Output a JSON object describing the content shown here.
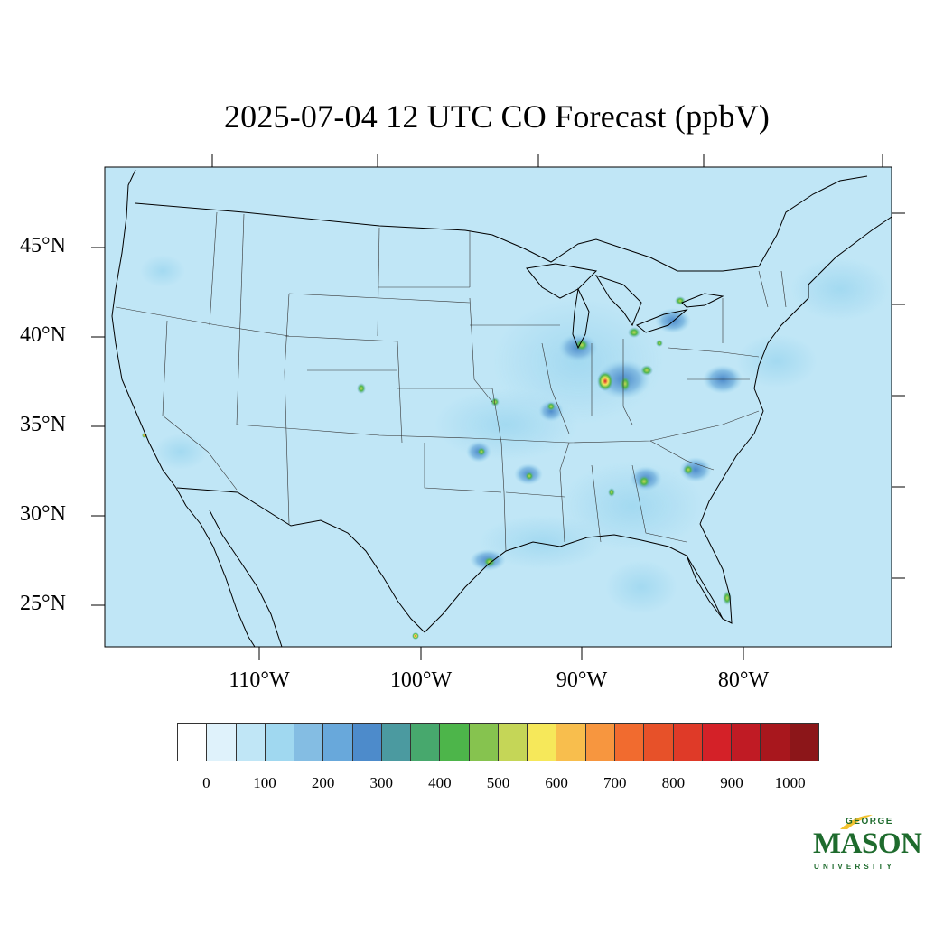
{
  "title": "2025-07-04 12 UTC CO Forecast (ppbV)",
  "map": {
    "lat_labels": [
      "45°N",
      "40°N",
      "35°N",
      "30°N",
      "25°N"
    ],
    "lon_labels": [
      "110°W",
      "100°W",
      "90°W",
      "80°W"
    ],
    "background_color": "#c0e6f6"
  },
  "colorbar": {
    "colors": [
      "#ffffff",
      "#dff2fb",
      "#c0e6f6",
      "#a0d8f0",
      "#84bde3",
      "#68a8db",
      "#4d8bcb",
      "#4b9aa0",
      "#47a86d",
      "#4db54a",
      "#86c34f",
      "#c5d657",
      "#f6e85a",
      "#f8be4d",
      "#f7963f",
      "#f16b2f",
      "#e75129",
      "#df3a28",
      "#d42128",
      "#c01b24",
      "#a8171d",
      "#8c1619"
    ],
    "tick_labels": [
      "0",
      "100",
      "200",
      "300",
      "400",
      "500",
      "600",
      "700",
      "800",
      "900",
      "1000"
    ]
  },
  "logo": {
    "line1": "GEORGE",
    "line2": "MASON",
    "line3": "UNIVERSITY",
    "color": "#1e6b2d",
    "accent": "#f2c230"
  }
}
